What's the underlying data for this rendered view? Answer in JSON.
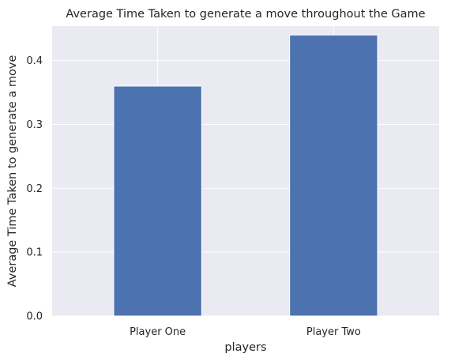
{
  "chart_data": {
    "type": "bar",
    "title": "Average Time Taken to generate a move throughout the Game",
    "xlabel": "players",
    "ylabel": "Average Time Taken to generate a move",
    "categories": [
      "Player One",
      "Player Two"
    ],
    "values": [
      0.36,
      0.44
    ],
    "ylim": [
      0,
      0.454
    ],
    "yticks": [
      0.0,
      0.1,
      0.2,
      0.3,
      0.4
    ],
    "ytick_labels": [
      "0.0",
      "0.1",
      "0.2",
      "0.3",
      "0.4"
    ],
    "grid": true,
    "legend": "none",
    "colors": {
      "bar": "#4c72b0",
      "plot_background": "#eaeaf2",
      "grid": "#ffffff",
      "text": "#262626"
    }
  }
}
